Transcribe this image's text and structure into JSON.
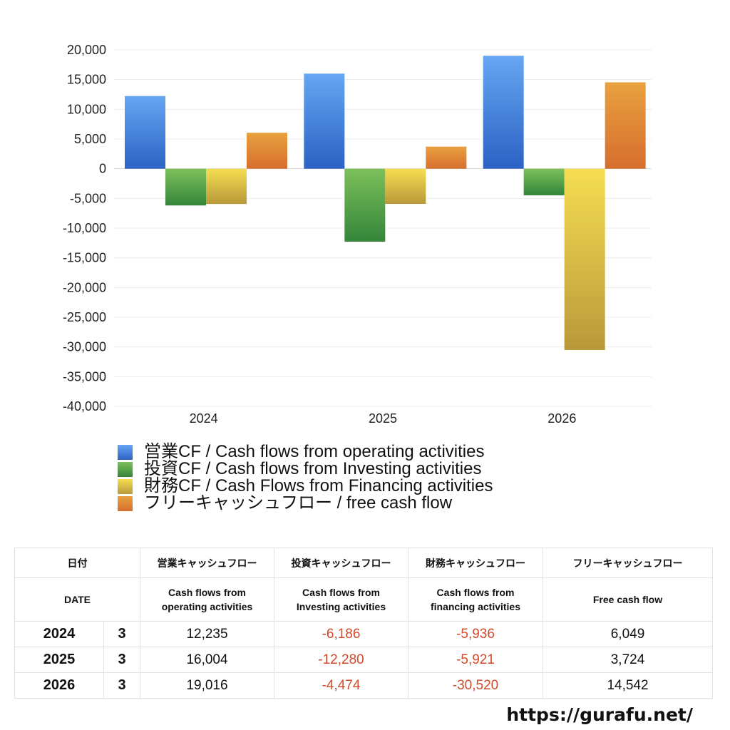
{
  "chart_data": {
    "type": "bar",
    "categories": [
      "2024",
      "2025",
      "2026"
    ],
    "ylim": [
      -40000,
      20000
    ],
    "yticks": [
      20000,
      15000,
      10000,
      5000,
      0,
      -5000,
      -10000,
      -15000,
      -20000,
      -25000,
      -30000,
      -35000,
      -40000
    ],
    "ytick_labels": [
      "20,000",
      "15,000",
      "10,000",
      "5,000",
      "0",
      "-5,000",
      "-10,000",
      "-15,000",
      "-20,000",
      "-25,000",
      "-30,000",
      "-35,000",
      "-40,000"
    ],
    "grid": true,
    "legend_position": "bottom",
    "series": [
      {
        "name": "営業CF / Cash flows from operating activities",
        "values": [
          12235,
          16004,
          19016
        ],
        "color_top": "#66a6f2",
        "color_bottom": "#2b62c4"
      },
      {
        "name": "投資CF / Cash flows from Investing activities",
        "values": [
          -6186,
          -12280,
          -4474
        ],
        "color_top": "#7cc05a",
        "color_bottom": "#34853a"
      },
      {
        "name": "財務CF / Cash Flows from Financing activities",
        "values": [
          -5936,
          -5921,
          -30520
        ],
        "color_top": "#f5de52",
        "color_bottom": "#b8993a"
      },
      {
        "name": "フリーキャッシュフロー / free cash flow",
        "values": [
          6049,
          3724,
          14542
        ],
        "color_top": "#e9a13f",
        "color_bottom": "#d66e2e"
      }
    ]
  },
  "table": {
    "headers_jp": [
      "日付",
      "営業キャッシュフロー",
      "投資キャッシュフロー",
      "財務キャッシュフロー",
      "フリーキャッシュフロー"
    ],
    "headers_en": {
      "date": "DATE",
      "operating": [
        "Cash flows from",
        "operating activities"
      ],
      "investing": [
        "Cash flows from",
        "Investing activities"
      ],
      "financing": [
        "Cash flows from",
        "financing activities"
      ],
      "free": "Free cash flow"
    },
    "rows": [
      {
        "year": "2024",
        "month": "3",
        "operating": "12,235",
        "investing": "-6,186",
        "financing": "-5,936",
        "free": "6,049"
      },
      {
        "year": "2025",
        "month": "3",
        "operating": "16,004",
        "investing": "-12,280",
        "financing": "-5,921",
        "free": "3,724"
      },
      {
        "year": "2026",
        "month": "3",
        "operating": "19,016",
        "investing": "-4,474",
        "financing": "-30,520",
        "free": "14,542"
      }
    ]
  },
  "site": {
    "url": "https://gurafu.net/"
  }
}
